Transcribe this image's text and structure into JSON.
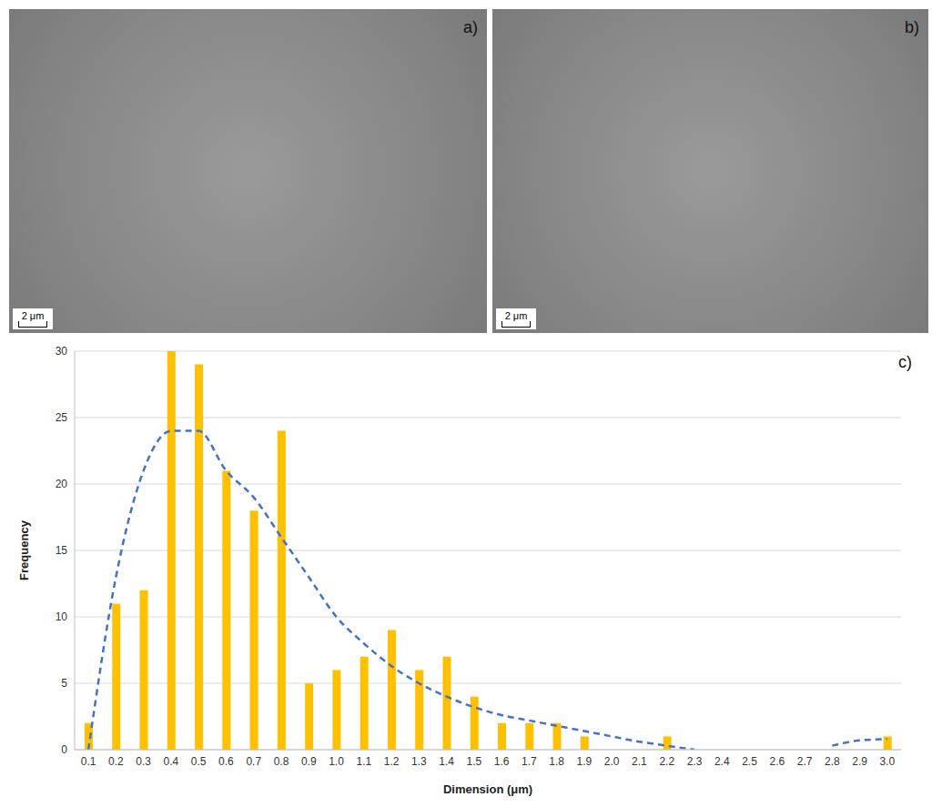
{
  "images": [
    {
      "label": "a)",
      "scale_bar": "2 μm"
    },
    {
      "label": "b)",
      "scale_bar": "2 μm"
    }
  ],
  "chart_label": "c)",
  "chart_data": {
    "type": "bar",
    "x_label": "Dimension (μm)",
    "y_label": "Frequency",
    "categories": [
      "0.1",
      "0.2",
      "0.3",
      "0.4",
      "0.5",
      "0.6",
      "0.7",
      "0.8",
      "0.9",
      "1.0",
      "1.1",
      "1.2",
      "1.3",
      "1.4",
      "1.5",
      "1.6",
      "1.7",
      "1.8",
      "1.9",
      "2.0",
      "2.1",
      "2.2",
      "2.3",
      "2.4",
      "2.5",
      "2.6",
      "2.7",
      "2.8",
      "2.9",
      "3.0"
    ],
    "series": [
      {
        "type": "bar",
        "color": "#ffc000",
        "values": [
          2,
          11,
          12,
          30,
          29,
          21,
          18,
          24,
          5,
          6,
          7,
          9,
          6,
          7,
          4,
          2,
          2,
          2,
          1,
          0,
          0,
          1,
          0,
          0,
          0,
          0,
          0,
          0,
          0,
          1
        ]
      },
      {
        "type": "line",
        "color": "#4472c4",
        "line_style": "dashed",
        "values": [
          0,
          13,
          21,
          24,
          24,
          21,
          19,
          16,
          13,
          10,
          8,
          6.3,
          5,
          4,
          3.2,
          2.6,
          2.2,
          1.8,
          1.4,
          1,
          0.6,
          0.3,
          0,
          null,
          null,
          null,
          null,
          0.3,
          0.7,
          0.8
        ]
      }
    ],
    "ylim": [
      0,
      30
    ],
    "yticks": [
      0,
      5,
      10,
      15,
      20,
      25,
      30
    ],
    "grid": true
  }
}
